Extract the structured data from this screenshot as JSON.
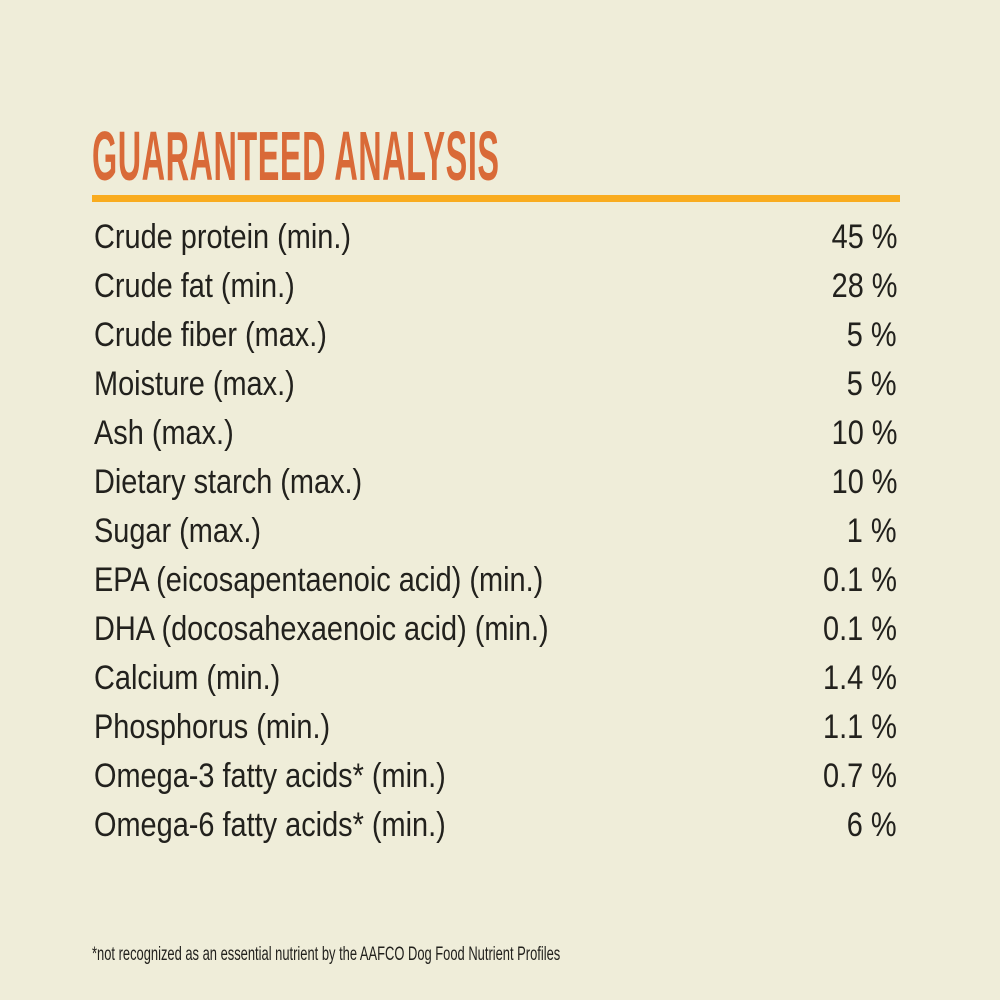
{
  "page": {
    "background_color": "#efedd9",
    "text_color": "#22211d"
  },
  "header": {
    "title": "GUARANTEED ANALYSIS",
    "title_color": "#d96a38",
    "rule_color": "#f9ac1f"
  },
  "table": {
    "rows": [
      {
        "label": "Crude protein (min.)",
        "value": "45 %"
      },
      {
        "label": "Crude fat (min.)",
        "value": "28 %"
      },
      {
        "label": "Crude fiber (max.)",
        "value": "5 %"
      },
      {
        "label": "Moisture (max.)",
        "value": "5 %"
      },
      {
        "label": "Ash (max.)",
        "value": "10 %"
      },
      {
        "label": "Dietary starch (max.)",
        "value": "10 %"
      },
      {
        "label": "Sugar (max.)",
        "value": "1 %"
      },
      {
        "label": "EPA (eicosapentaenoic acid) (min.)",
        "value": "0.1 %"
      },
      {
        "label": "DHA (docosahexaenoic acid) (min.)",
        "value": "0.1 %"
      },
      {
        "label": "Calcium (min.)",
        "value": "1.4 %"
      },
      {
        "label": "Phosphorus (min.)",
        "value": "1.1 %"
      },
      {
        "label": "Omega-3 fatty acids* (min.)",
        "value": "0.7 %"
      },
      {
        "label": "Omega-6 fatty acids* (min.)",
        "value": "6 %"
      }
    ]
  },
  "footnote": {
    "text": "*not recognized as an essential nutrient by the AAFCO Dog Food Nutrient Profiles"
  }
}
